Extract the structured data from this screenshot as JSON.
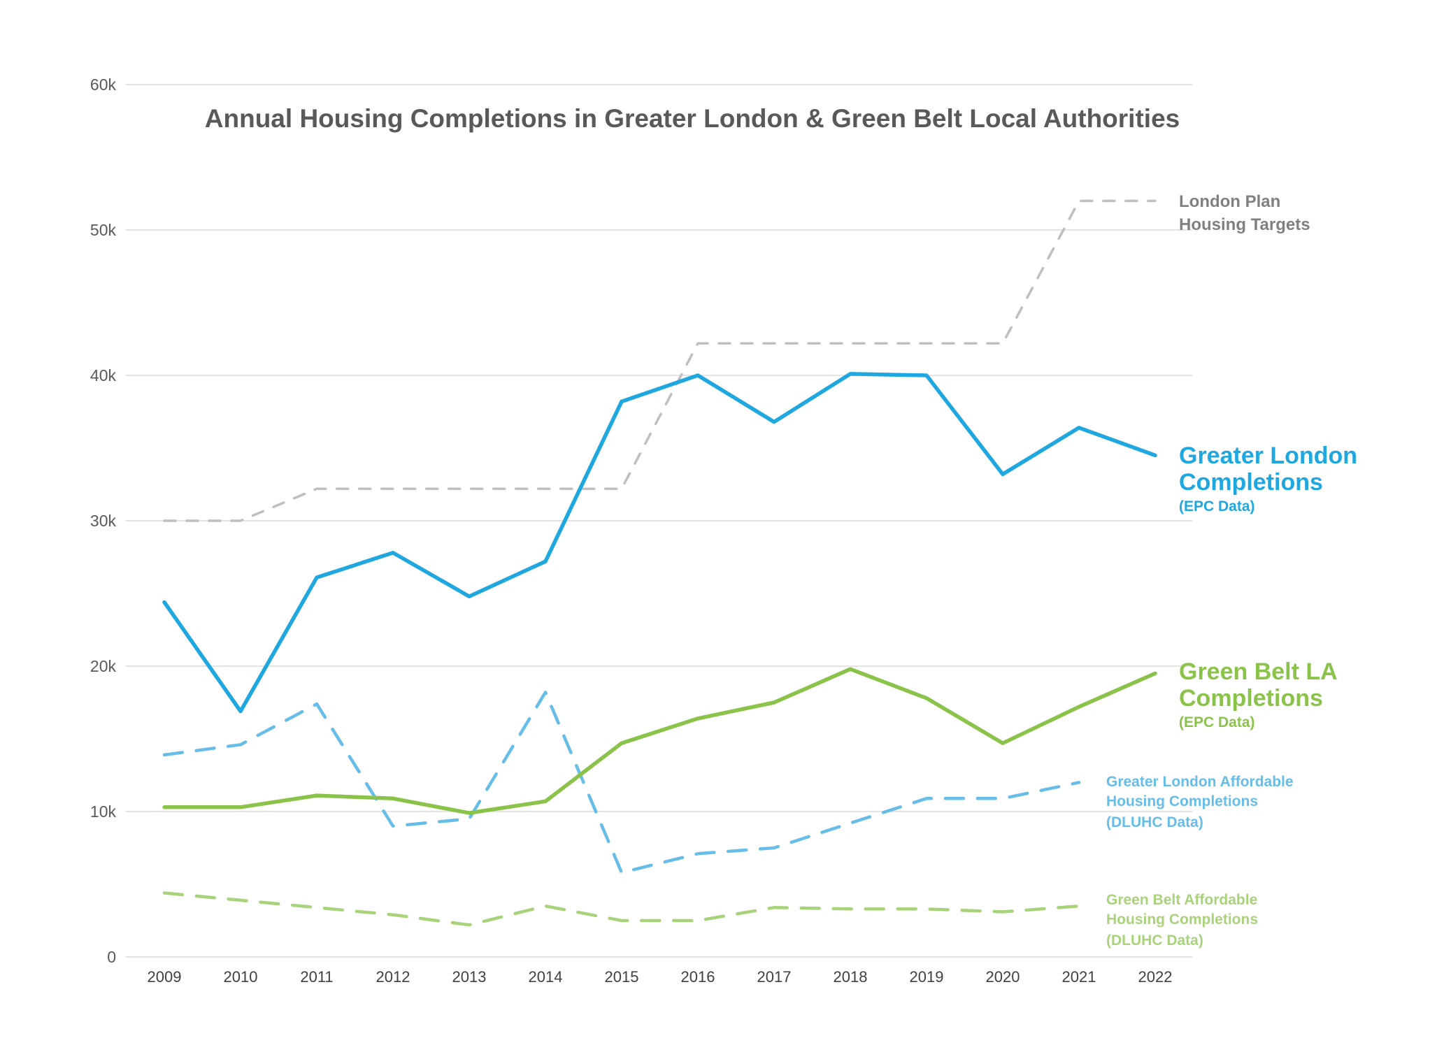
{
  "chart_data": {
    "type": "line",
    "title": "Annual Housing Completions in Greater London & Green Belt Local Authorities",
    "xlabel": "",
    "ylabel": "",
    "ylim": [
      0,
      60000
    ],
    "yticks": [
      0,
      10000,
      20000,
      30000,
      40000,
      50000,
      60000
    ],
    "ytick_labels": [
      "0",
      "10k",
      "20k",
      "30k",
      "40k",
      "50k",
      "60k"
    ],
    "categories": [
      "2009",
      "2010",
      "2011",
      "2012",
      "2013",
      "2014",
      "2015",
      "2016",
      "2017",
      "2018",
      "2019",
      "2020",
      "2021",
      "2022"
    ],
    "grid": true,
    "series": [
      {
        "id": "targets",
        "name": "London Plan Housing Targets",
        "label_lines": [
          "London Plan",
          "Housing Targets"
        ],
        "color": "#bfbfbf",
        "style": "dashed-dotted",
        "values": [
          30000,
          30000,
          32200,
          32200,
          32200,
          32200,
          32200,
          42200,
          42200,
          42200,
          42200,
          42200,
          52000,
          52000
        ]
      },
      {
        "id": "gl",
        "name": "Greater London Completions (EPC Data)",
        "label_lines": [
          "Greater London",
          "Completions"
        ],
        "label_source": "(EPC Data)",
        "color": "#1fa7e0",
        "style": "solid",
        "values": [
          24400,
          16900,
          26100,
          27800,
          24800,
          27200,
          38200,
          40000,
          36800,
          40100,
          40000,
          33200,
          36400,
          34500
        ]
      },
      {
        "id": "gb",
        "name": "Green Belt LA Completions (EPC Data)",
        "label_lines": [
          "Green Belt LA",
          "Completions"
        ],
        "label_source": "(EPC Data)",
        "color": "#8bc34a",
        "style": "solid",
        "values": [
          10300,
          10300,
          11100,
          10900,
          9900,
          10700,
          14700,
          16400,
          17500,
          19800,
          17800,
          14700,
          17200,
          19500
        ]
      },
      {
        "id": "gla",
        "name": "Greater London Affordable Housing Completions (DLUHC Data)",
        "label_lines": [
          "Greater London Affordable",
          "Housing Completions"
        ],
        "label_source": "(DLUHC Data)",
        "color": "#66bde8",
        "style": "dashed",
        "values": [
          13900,
          14600,
          17400,
          9000,
          9500,
          18200,
          5800,
          7100,
          7500,
          9200,
          10900,
          10900,
          12000,
          null
        ]
      },
      {
        "id": "gba",
        "name": "Green Belt Affordable Housing Completions (DLUHC Data)",
        "label_lines": [
          "Green Belt Affordable",
          "Housing Completions"
        ],
        "label_source": "(DLUHC Data)",
        "color": "#a9d37a",
        "style": "dashed",
        "values": [
          4400,
          3900,
          3400,
          2900,
          2200,
          3500,
          2500,
          2500,
          3400,
          3300,
          3300,
          3100,
          3500,
          null
        ]
      }
    ]
  }
}
